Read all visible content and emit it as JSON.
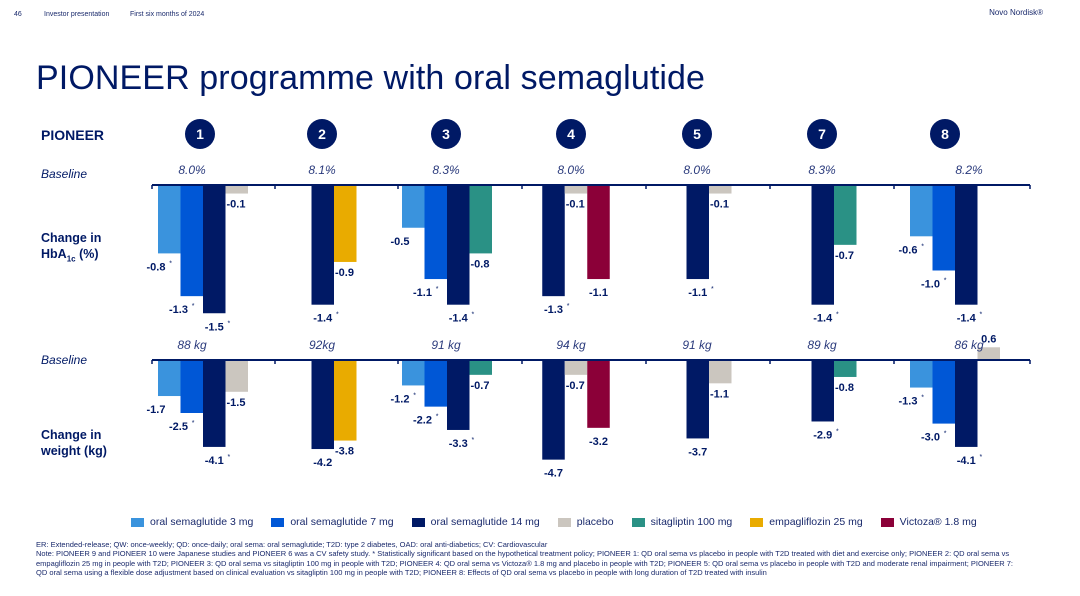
{
  "header": {
    "page_number": "46",
    "presentation": "Investor presentation",
    "period": "First six months of 2024",
    "brand": "Novo Nordisk®"
  },
  "title": "PIONEER programme with oral semaglutide",
  "row_labels": {
    "pioneer": "PIONEER",
    "baseline": "Baseline",
    "hba1c_line1": "Change in",
    "hba1c_main": "HbA",
    "hba1c_sub": "1c",
    "hba1c_unit": " (%)",
    "weight_line1": "Change in",
    "weight_line2": "weight (kg)"
  },
  "colors": {
    "sema3": "#3a93dd",
    "sema7": "#0057d6",
    "sema14": "#001965",
    "placebo": "#cbc6bf",
    "sitagliptin": "#2a9185",
    "empagliflozin": "#e9ab00",
    "victoza": "#8b0038",
    "axis": "#001965",
    "text": "#001965"
  },
  "legend": [
    {
      "key": "sema3",
      "label": "oral semaglutide 3 mg"
    },
    {
      "key": "sema7",
      "label": "oral semaglutide 7 mg"
    },
    {
      "key": "sema14",
      "label": "oral semaglutide 14 mg"
    },
    {
      "key": "placebo",
      "label": "placebo"
    },
    {
      "key": "sitagliptin",
      "label": "sitagliptin 100 mg"
    },
    {
      "key": "empagliflozin",
      "label": "empagliflozin 25 mg"
    },
    {
      "key": "victoza",
      "label": "Victoza® 1.8 mg"
    }
  ],
  "chart_data": [
    {
      "type": "bar",
      "title": "Change in HbA1c (%)",
      "ylabel": "Change in HbA1c (%)",
      "categories": [
        "1",
        "2",
        "3",
        "4",
        "5",
        "7",
        "8"
      ],
      "baselines": [
        "8.0%",
        "8.1%",
        "8.3%",
        "8.0%",
        "8.0%",
        "8.3%",
        "8.2%"
      ],
      "ylim": [
        -1.6,
        0.2
      ],
      "grid": false,
      "legend": "bottom",
      "groups": [
        {
          "trial": "1",
          "bars": [
            {
              "key": "sema3",
              "value": -0.8,
              "label": "-0.8",
              "sig": true
            },
            {
              "key": "sema7",
              "value": -1.3,
              "label": "-1.3",
              "sig": true
            },
            {
              "key": "sema14",
              "value": -1.5,
              "label": "-1.5",
              "sig": true
            },
            {
              "key": "placebo",
              "value": -0.1,
              "label": "-0.1",
              "sig": false
            }
          ]
        },
        {
          "trial": "2",
          "bars": [
            {
              "key": "sema14",
              "value": -1.4,
              "label": "-1.4",
              "sig": true
            },
            {
              "key": "empagliflozin",
              "value": -0.9,
              "label": "-0.9",
              "sig": false
            }
          ]
        },
        {
          "trial": "3",
          "bars": [
            {
              "key": "sema3",
              "value": -0.5,
              "label": "-0.5",
              "sig": false
            },
            {
              "key": "sema7",
              "value": -1.1,
              "label": "-1.1",
              "sig": true
            },
            {
              "key": "sema14",
              "value": -1.4,
              "label": "-1.4",
              "sig": true
            },
            {
              "key": "sitagliptin",
              "value": -0.8,
              "label": "-0.8",
              "sig": false
            }
          ]
        },
        {
          "trial": "4",
          "bars": [
            {
              "key": "sema14",
              "value": -1.3,
              "label": "-1.3",
              "sig": true
            },
            {
              "key": "placebo",
              "value": -0.1,
              "label": "-0.1",
              "sig": false
            },
            {
              "key": "victoza",
              "value": -1.1,
              "label": "-1.1",
              "sig": false
            }
          ]
        },
        {
          "trial": "5",
          "bars": [
            {
              "key": "sema14",
              "value": -1.1,
              "label": "-1.1",
              "sig": true
            },
            {
              "key": "placebo",
              "value": -0.1,
              "label": "-0.1",
              "sig": false
            }
          ]
        },
        {
          "trial": "7",
          "bars": [
            {
              "key": "sema14",
              "value": -1.4,
              "label": "-1.4",
              "sig": true
            },
            {
              "key": "sitagliptin",
              "value": -0.7,
              "label": "-0.7",
              "sig": false
            }
          ]
        },
        {
          "trial": "8",
          "bars": [
            {
              "key": "sema3",
              "value": -0.6,
              "label": "-0.6",
              "sig": true
            },
            {
              "key": "sema7",
              "value": -1.0,
              "label": "-1.0",
              "sig": true
            },
            {
              "key": "sema14",
              "value": -1.4,
              "label": "-1.4",
              "sig": true
            }
          ]
        }
      ]
    },
    {
      "type": "bar",
      "title": "Change in weight (kg)",
      "ylabel": "Change in weight (kg)",
      "categories": [
        "1",
        "2",
        "3",
        "4",
        "5",
        "7",
        "8"
      ],
      "baselines": [
        "88 kg",
        "92kg",
        "91 kg",
        "94 kg",
        "91 kg",
        "89 kg",
        "86 kg"
      ],
      "ylim": [
        -5,
        1
      ],
      "grid": false,
      "legend": "bottom",
      "groups": [
        {
          "trial": "1",
          "bars": [
            {
              "key": "sema3",
              "value": -1.7,
              "label": "-1.7",
              "sig": false
            },
            {
              "key": "sema7",
              "value": -2.5,
              "label": "-2.5",
              "sig": true
            },
            {
              "key": "sema14",
              "value": -4.1,
              "label": "-4.1",
              "sig": true
            },
            {
              "key": "placebo",
              "value": -1.5,
              "label": "-1.5",
              "sig": false
            }
          ]
        },
        {
          "trial": "2",
          "bars": [
            {
              "key": "sema14",
              "value": -4.2,
              "label": "-4.2",
              "sig": false
            },
            {
              "key": "empagliflozin",
              "value": -3.8,
              "label": "-3.8",
              "sig": false
            }
          ]
        },
        {
          "trial": "3",
          "bars": [
            {
              "key": "sema3",
              "value": -1.2,
              "label": "-1.2",
              "sig": true
            },
            {
              "key": "sema7",
              "value": -2.2,
              "label": "-2.2",
              "sig": true
            },
            {
              "key": "sema14",
              "value": -3.3,
              "label": "-3.3",
              "sig": true
            },
            {
              "key": "sitagliptin",
              "value": -0.7,
              "label": "-0.7",
              "sig": false
            }
          ]
        },
        {
          "trial": "4",
          "bars": [
            {
              "key": "sema14",
              "value": -4.7,
              "label": "-4.7",
              "sig": false
            },
            {
              "key": "placebo",
              "value": -0.7,
              "label": "-0.7",
              "sig": false
            },
            {
              "key": "victoza",
              "value": -3.2,
              "label": "-3.2",
              "sig": false
            }
          ]
        },
        {
          "trial": "5",
          "bars": [
            {
              "key": "sema14",
              "value": -3.7,
              "label": "-3.7",
              "sig": false
            },
            {
              "key": "placebo",
              "value": -1.1,
              "label": "-1.1",
              "sig": false
            }
          ]
        },
        {
          "trial": "7",
          "bars": [
            {
              "key": "sema14",
              "value": -2.9,
              "label": "-2.9",
              "sig": true
            },
            {
              "key": "sitagliptin",
              "value": -0.8,
              "label": "-0.8",
              "sig": false
            }
          ]
        },
        {
          "trial": "8",
          "bars": [
            {
              "key": "sema3",
              "value": -1.3,
              "label": "-1.3",
              "sig": true
            },
            {
              "key": "sema7",
              "value": -3.0,
              "label": "-3.0",
              "sig": true
            },
            {
              "key": "sema14",
              "value": -4.1,
              "label": "-4.1",
              "sig": true
            },
            {
              "key": "placebo",
              "value": 0.6,
              "label": "0.6",
              "sig": false
            }
          ]
        }
      ]
    }
  ],
  "significance_marker": "*",
  "footnotes": [
    "ER: Extended-release; QW: once-weekly; QD: once-daily; oral sema: oral semaglutide; T2D: type 2 diabetes, OAD: oral anti-diabetics; CV: Cardiovascular",
    "Note: PIONEER 9 and PIONEER 10 were Japanese studies and PIONEER 6 was a CV safety study. * Statistically significant based on the hypothetical treatment policy; PIONEER 1: QD oral sema vs placebo in people with T2D treated with diet and exercise only; PIONEER 2: QD oral sema vs empagliflozin 25 mg in people with T2D; PIONEER 3: QD oral sema vs sitagliptin 100 mg in people with T2D; PIONEER 4: QD oral sema vs Victoza® 1.8 mg and placebo in people with T2D; PIONEER 5: QD oral sema vs placebo in people with T2D and moderate renal impairment; PIONEER 7: QD oral sema using a flexible dose adjustment based on clinical evaluation vs sitagliptin 100 mg in people with T2D; PIONEER 8: Effects of QD oral sema vs placebo in people with long duration of T2D treated with insulin"
  ]
}
